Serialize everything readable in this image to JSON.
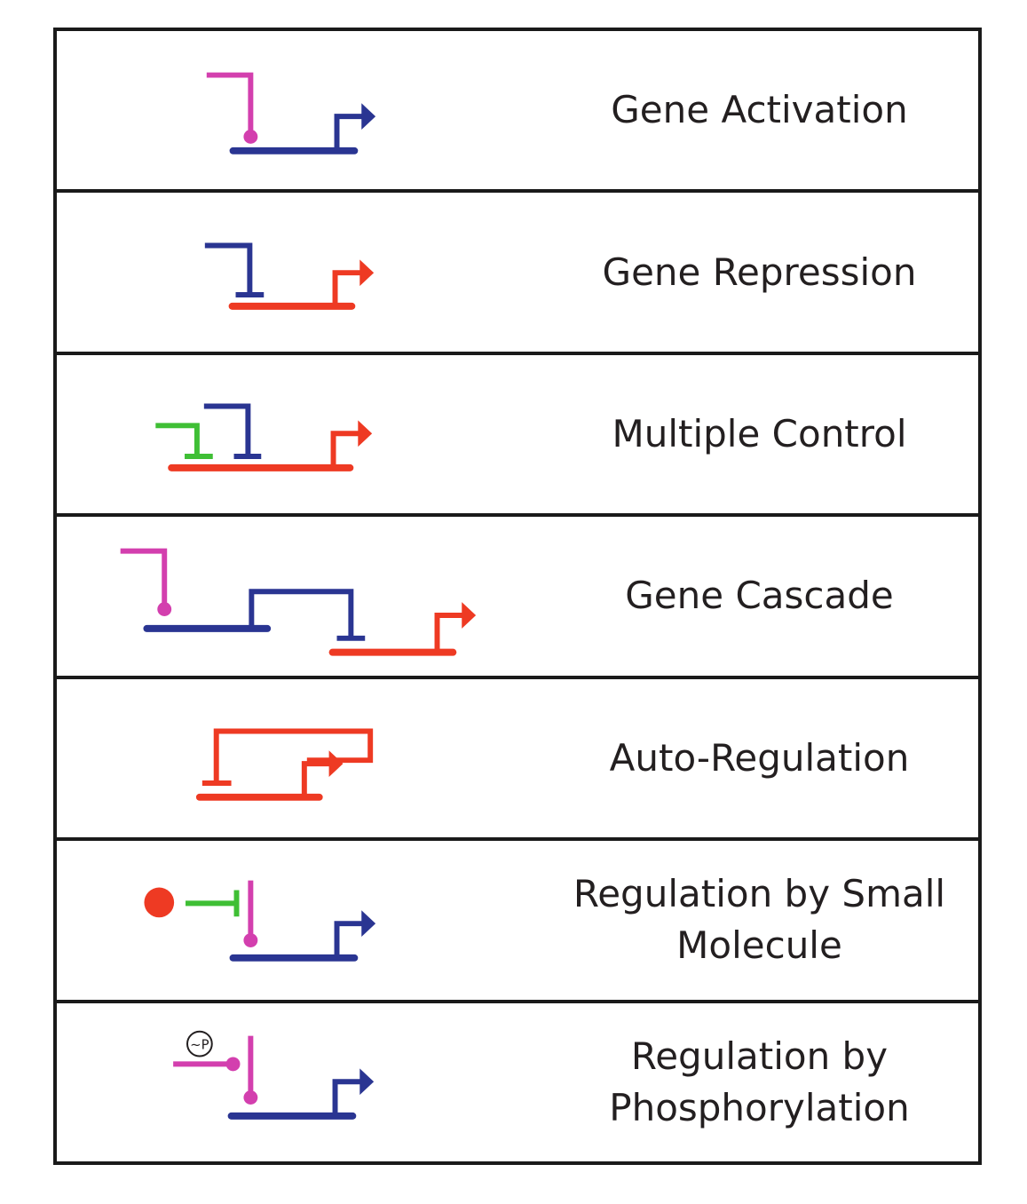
{
  "colors": {
    "magenta": "#d33fae",
    "blue": "#2a3592",
    "red": "#ee3a23",
    "green": "#3fbf35",
    "black": "#231f20"
  },
  "rows": [
    {
      "label": "Gene Activation",
      "glyph": "gene-activation-glyph"
    },
    {
      "label": "Gene Repression",
      "glyph": "gene-repression-glyph"
    },
    {
      "label": "Multiple Control",
      "glyph": "multiple-control-glyph"
    },
    {
      "label": "Gene Cascade",
      "glyph": "gene-cascade-glyph"
    },
    {
      "label": "Auto-Regulation",
      "glyph": "auto-regulation-glyph"
    },
    {
      "label": "Regulation by Small\nMolecule",
      "glyph": "small-molecule-regulation-glyph"
    },
    {
      "label": "Regulation by\nPhosphorylation",
      "glyph": "phosphorylation-regulation-glyph"
    }
  ],
  "phospho_symbol": "~P"
}
